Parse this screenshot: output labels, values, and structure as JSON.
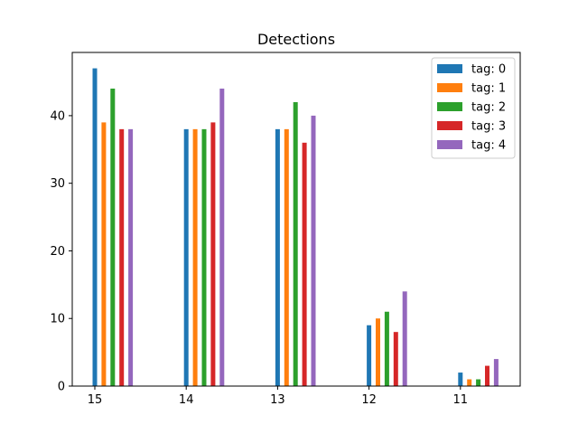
{
  "chart_data": {
    "type": "bar",
    "title": "Detections",
    "xlabel": "",
    "ylabel": "",
    "categories": [
      "15",
      "14",
      "13",
      "12",
      "11"
    ],
    "ylim": [
      0,
      49.35
    ],
    "yticks": [
      0,
      10,
      20,
      30,
      40
    ],
    "grid": false,
    "legend_position": "top-right",
    "series": [
      {
        "name": "tag: 0",
        "color": "#1f77b4",
        "values": [
          47,
          38,
          38,
          9,
          2
        ]
      },
      {
        "name": "tag: 1",
        "color": "#ff7f0e",
        "values": [
          39,
          38,
          38,
          10,
          1
        ]
      },
      {
        "name": "tag: 2",
        "color": "#2ca02c",
        "values": [
          44,
          38,
          42,
          11,
          1
        ]
      },
      {
        "name": "tag: 3",
        "color": "#d62728",
        "values": [
          38,
          39,
          36,
          8,
          3
        ]
      },
      {
        "name": "tag: 4",
        "color": "#9467bd",
        "values": [
          38,
          44,
          40,
          14,
          4
        ]
      }
    ]
  }
}
